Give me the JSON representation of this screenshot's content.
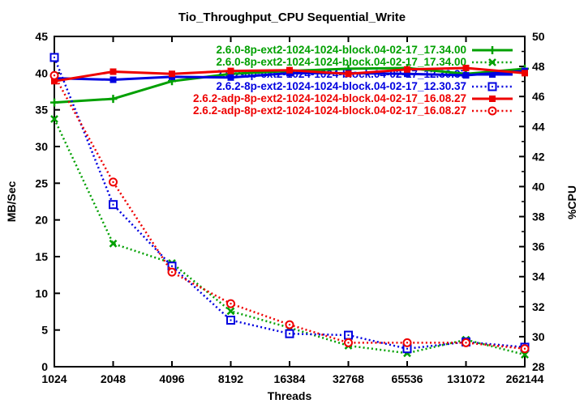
{
  "title": "Tio_Throughput_CPU Sequential_Write",
  "axes": {
    "x": {
      "label": "Threads",
      "scale": "log2",
      "tick_labels": [
        "1024",
        "2048",
        "4096",
        "8192",
        "16384",
        "32768",
        "65536",
        "131072",
        "262144"
      ]
    },
    "y_left": {
      "label": "MB/Sec",
      "min": 0,
      "max": 45,
      "major_ticks": [
        0,
        5,
        10,
        15,
        20,
        25,
        30,
        35,
        40,
        45
      ]
    },
    "y_right": {
      "label": "%CPU",
      "min": 28,
      "max": 50,
      "major_ticks": [
        28,
        30,
        32,
        34,
        36,
        38,
        40,
        42,
        44,
        46,
        48,
        50
      ],
      "minor_ticks": [
        29,
        31,
        33,
        35,
        37,
        39,
        41,
        43,
        45,
        47,
        49
      ]
    }
  },
  "chart_data": {
    "type": "line",
    "title": "Tio_Throughput_CPU Sequential_Write",
    "xlabel": "Threads",
    "ylabel_left": "MB/Sec",
    "ylabel_right": "%CPU",
    "x_categories": [
      1024,
      2048,
      4096,
      8192,
      16384,
      32768,
      65536,
      131072,
      262144
    ],
    "ylim_left": [
      0,
      45
    ],
    "ylim_right": [
      28,
      50
    ],
    "grid": false,
    "legend_position": "top-right-inside",
    "series": [
      {
        "name": "2.6.0-8p-ext2-1024-1024-block.04-02-17_17.34.00",
        "axis": "left",
        "unit": "MB/Sec",
        "line": "solid",
        "marker": "plus",
        "color": "#00a000",
        "values": [
          36.0,
          36.5,
          38.9,
          39.9,
          40.3,
          40.6,
          40.7,
          39.9,
          40.6
        ]
      },
      {
        "name": "2.6.0-8p-ext2-1024-1024-block.04-02-17_17.34.00",
        "axis": "right",
        "unit": "%CPU",
        "line": "dotted",
        "marker": "cross",
        "color": "#00a000",
        "values": [
          44.5,
          36.2,
          34.9,
          31.7,
          30.6,
          29.4,
          28.9,
          29.8,
          28.8
        ]
      },
      {
        "name": "2.6.2-8p-ext2-1024-1024-block.04-02-17_12.30.37",
        "axis": "left",
        "unit": "MB/Sec",
        "line": "solid",
        "marker": "fsquare",
        "color": "#0000e0",
        "values": [
          39.3,
          39.1,
          39.5,
          39.4,
          40.0,
          40.0,
          39.9,
          39.7,
          40.3
        ]
      },
      {
        "name": "2.6.2-8p-ext2-1024-1024-block.04-02-17_12.30.37",
        "axis": "right",
        "unit": "%CPU",
        "line": "dotted",
        "marker": "osquare",
        "color": "#0000e0",
        "values": [
          48.6,
          38.8,
          34.7,
          31.1,
          30.2,
          30.1,
          29.2,
          29.65,
          29.3
        ]
      },
      {
        "name": "2.6.2-adp-8p-ext2-1024-1024-block.04-02-17_16.08.27",
        "axis": "left",
        "unit": "MB/Sec",
        "line": "solid",
        "marker": "fsquare",
        "color": "#ee0000",
        "values": [
          38.9,
          40.2,
          39.9,
          40.3,
          40.4,
          39.9,
          40.5,
          40.7,
          40.0
        ]
      },
      {
        "name": "2.6.2-adp-8p-ext2-1024-1024-block.04-02-17_16.08.27",
        "axis": "right",
        "unit": "%CPU",
        "line": "dotted",
        "marker": "ocircle",
        "color": "#ee0000",
        "values": [
          47.4,
          40.3,
          34.3,
          32.2,
          30.8,
          29.6,
          29.6,
          29.6,
          29.2
        ]
      }
    ]
  }
}
